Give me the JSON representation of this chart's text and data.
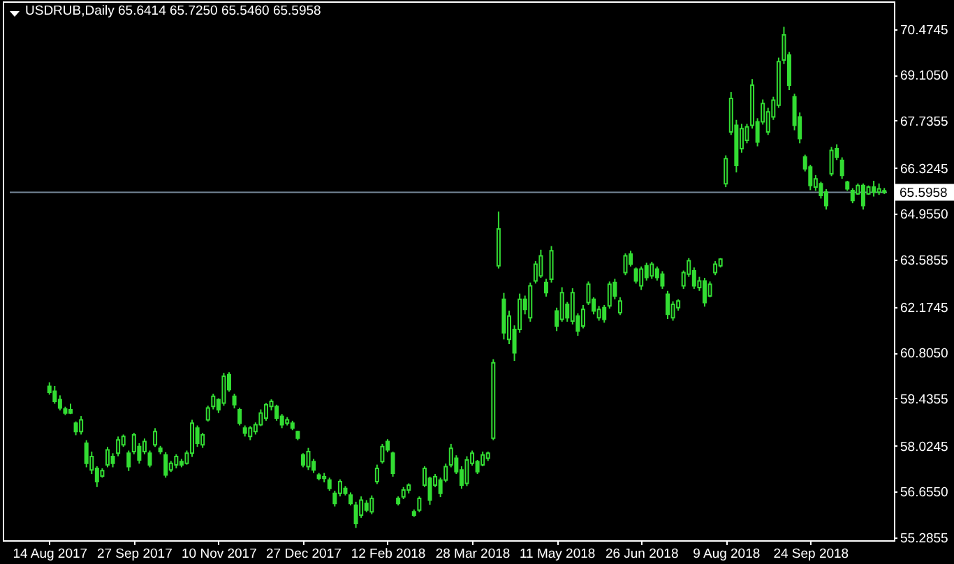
{
  "chart_data": {
    "type": "candlestick",
    "title": "USDRUB,Daily 65.6414 65.7250 65.5460 65.5958",
    "color": "#33dd33",
    "categories": [
      "14 Aug 2017",
      null,
      null,
      null,
      null,
      null,
      null,
      null,
      null,
      null,
      null,
      null,
      null,
      null,
      null,
      null,
      "27 Sep 2017",
      null,
      null,
      null,
      null,
      null,
      null,
      null,
      null,
      null,
      null,
      null,
      null,
      null,
      null,
      null,
      "10 Nov 2017",
      null,
      null,
      null,
      null,
      null,
      null,
      null,
      null,
      null,
      null,
      null,
      null,
      null,
      null,
      null,
      "27 Dec 2017",
      null,
      null,
      null,
      null,
      null,
      null,
      null,
      null,
      null,
      null,
      null,
      null,
      null,
      null,
      null,
      "12 Feb 2018",
      null,
      null,
      null,
      null,
      null,
      null,
      null,
      null,
      null,
      null,
      null,
      null,
      null,
      null,
      null,
      "28 Mar 2018",
      null,
      null,
      null,
      null,
      null,
      null,
      null,
      null,
      null,
      null,
      null,
      null,
      null,
      null,
      null,
      "11 May 2018",
      null,
      null,
      null,
      null,
      null,
      null,
      null,
      null,
      null,
      null,
      null,
      null,
      null,
      null,
      null,
      "26 Jun 2018",
      null,
      null,
      null,
      null,
      null,
      null,
      null,
      null,
      null,
      null,
      null,
      null,
      null,
      null,
      null,
      "9 Aug 2018",
      null,
      null,
      null,
      null,
      null,
      null,
      null,
      null,
      null,
      null,
      null,
      null,
      null,
      null,
      null,
      "24 Sep 2018",
      null,
      null,
      null,
      null,
      null,
      null,
      null,
      null,
      null,
      null,
      null,
      null,
      null,
      null
    ],
    "ohlc": [
      [
        59.8,
        59.92,
        59.55,
        59.62
      ],
      [
        59.65,
        59.81,
        59.28,
        59.35
      ],
      [
        59.4,
        59.53,
        59.08,
        59.15
      ],
      [
        59.12,
        59.19,
        58.94,
        59.0
      ],
      [
        59.1,
        59.28,
        58.97,
        59.0
      ],
      [
        58.7,
        58.75,
        58.34,
        58.45
      ],
      [
        58.45,
        58.91,
        58.36,
        58.8
      ],
      [
        58.1,
        58.19,
        57.38,
        57.5
      ],
      [
        57.3,
        57.85,
        57.18,
        57.7
      ],
      [
        57.35,
        57.41,
        56.79,
        56.95
      ],
      [
        57.12,
        57.35,
        57.07,
        57.28
      ],
      [
        57.45,
        57.99,
        57.38,
        57.9
      ],
      [
        57.7,
        57.8,
        57.38,
        57.5
      ],
      [
        57.8,
        58.3,
        57.71,
        58.2
      ],
      [
        58.05,
        58.36,
        57.99,
        58.3
      ],
      [
        57.8,
        57.88,
        57.27,
        57.4
      ],
      [
        57.85,
        58.41,
        57.77,
        58.35
      ],
      [
        58.0,
        58.1,
        57.49,
        57.6
      ],
      [
        57.85,
        58.24,
        57.77,
        58.15
      ],
      [
        57.8,
        57.88,
        57.38,
        57.45
      ],
      [
        58.05,
        58.55,
        57.99,
        58.45
      ],
      [
        57.95,
        58.02,
        57.77,
        57.85
      ],
      [
        57.75,
        57.83,
        57.07,
        57.15
      ],
      [
        57.3,
        57.57,
        57.24,
        57.5
      ],
      [
        57.45,
        57.77,
        57.35,
        57.7
      ],
      [
        57.55,
        57.63,
        57.38,
        57.45
      ],
      [
        57.5,
        57.88,
        57.46,
        57.8
      ],
      [
        57.8,
        58.8,
        57.69,
        58.7
      ],
      [
        58.55,
        58.63,
        57.99,
        58.1
      ],
      [
        58.05,
        58.41,
        57.96,
        58.35
      ],
      [
        58.8,
        59.22,
        58.75,
        59.15
      ],
      [
        59.2,
        59.58,
        59.11,
        59.5
      ],
      [
        59.4,
        59.44,
        59.0,
        59.1
      ],
      [
        59.3,
        60.2,
        59.22,
        60.1
      ],
      [
        60.15,
        60.22,
        59.64,
        59.7
      ],
      [
        59.5,
        59.58,
        59.14,
        59.25
      ],
      [
        59.1,
        59.16,
        58.63,
        58.7
      ],
      [
        58.55,
        58.63,
        58.3,
        58.4
      ],
      [
        58.3,
        58.61,
        58.19,
        58.55
      ],
      [
        58.45,
        58.72,
        58.36,
        58.65
      ],
      [
        58.65,
        59.11,
        58.61,
        59.0
      ],
      [
        58.85,
        59.3,
        58.77,
        59.25
      ],
      [
        59.2,
        59.41,
        59.08,
        59.35
      ],
      [
        59.2,
        59.25,
        58.77,
        58.85
      ],
      [
        58.9,
        58.97,
        58.55,
        58.65
      ],
      [
        58.7,
        58.88,
        58.63,
        58.8
      ],
      [
        58.7,
        58.77,
        58.49,
        58.55
      ],
      [
        58.45,
        58.47,
        58.19,
        58.25
      ],
      [
        57.75,
        57.8,
        57.38,
        57.45
      ],
      [
        57.4,
        57.96,
        57.3,
        57.85
      ],
      [
        57.55,
        57.63,
        57.21,
        57.3
      ],
      [
        57.15,
        57.21,
        56.99,
        57.05
      ],
      [
        57.05,
        57.21,
        56.93,
        57.1
      ],
      [
        57.0,
        57.07,
        56.68,
        56.75
      ],
      [
        56.6,
        56.68,
        56.21,
        56.3
      ],
      [
        56.6,
        57.02,
        56.51,
        56.95
      ],
      [
        56.75,
        56.82,
        56.54,
        56.6
      ],
      [
        56.55,
        56.63,
        56.24,
        56.3
      ],
      [
        56.25,
        56.35,
        55.57,
        55.7
      ],
      [
        55.95,
        56.51,
        55.87,
        56.4
      ],
      [
        56.3,
        56.4,
        56.04,
        56.1
      ],
      [
        56.05,
        56.54,
        55.98,
        56.45
      ],
      [
        56.95,
        57.46,
        56.88,
        57.35
      ],
      [
        57.55,
        58.08,
        57.49,
        58.0
      ],
      [
        58.15,
        58.22,
        57.83,
        57.9
      ],
      [
        57.8,
        57.85,
        57.1,
        57.2
      ],
      [
        56.45,
        56.51,
        56.24,
        56.3
      ],
      [
        56.5,
        56.79,
        56.43,
        56.7
      ],
      [
        56.7,
        56.9,
        56.6,
        56.85
      ],
      [
        56.05,
        56.12,
        55.9,
        55.95
      ],
      [
        56.1,
        56.51,
        56.04,
        56.45
      ],
      [
        56.85,
        57.41,
        56.79,
        57.35
      ],
      [
        57.05,
        57.1,
        56.26,
        56.4
      ],
      [
        56.85,
        57.18,
        56.79,
        57.1
      ],
      [
        57.0,
        57.07,
        56.49,
        56.6
      ],
      [
        57.0,
        57.49,
        56.93,
        57.4
      ],
      [
        57.45,
        58.08,
        57.38,
        57.95
      ],
      [
        57.65,
        57.74,
        57.18,
        57.25
      ],
      [
        57.3,
        57.41,
        56.74,
        56.85
      ],
      [
        56.9,
        57.71,
        56.82,
        57.6
      ],
      [
        57.5,
        57.88,
        57.43,
        57.8
      ],
      [
        57.55,
        57.6,
        57.18,
        57.25
      ],
      [
        57.45,
        57.85,
        57.41,
        57.75
      ],
      [
        57.65,
        57.85,
        57.57,
        57.8
      ],
      [
        58.25,
        60.61,
        58.19,
        60.5
      ],
      [
        63.4,
        65.02,
        63.32,
        64.5
      ],
      [
        62.4,
        62.59,
        61.2,
        61.4
      ],
      [
        61.2,
        62.06,
        61.06,
        61.9
      ],
      [
        61.5,
        61.62,
        60.56,
        60.8
      ],
      [
        61.5,
        62.57,
        61.4,
        62.4
      ],
      [
        62.4,
        62.51,
        61.95,
        62.1
      ],
      [
        61.85,
        62.9,
        61.73,
        62.8
      ],
      [
        62.95,
        63.54,
        62.87,
        63.45
      ],
      [
        63.1,
        63.88,
        63.04,
        63.7
      ],
      [
        62.9,
        63.01,
        62.48,
        62.6
      ],
      [
        63.0,
        63.99,
        62.9,
        63.85
      ],
      [
        62.05,
        62.15,
        61.45,
        61.6
      ],
      [
        61.8,
        62.76,
        61.73,
        62.6
      ],
      [
        62.25,
        62.32,
        61.73,
        61.85
      ],
      [
        61.75,
        62.73,
        61.65,
        62.6
      ],
      [
        61.9,
        61.98,
        61.31,
        61.45
      ],
      [
        61.6,
        62.23,
        61.53,
        62.1
      ],
      [
        62.3,
        62.93,
        62.23,
        62.85
      ],
      [
        62.4,
        62.46,
        61.95,
        62.05
      ],
      [
        61.85,
        62.2,
        61.76,
        62.1
      ],
      [
        62.15,
        62.23,
        61.7,
        61.8
      ],
      [
        62.2,
        62.93,
        62.12,
        62.85
      ],
      [
        62.9,
        63.01,
        62.4,
        62.5
      ],
      [
        62.0,
        62.46,
        61.93,
        62.35
      ],
      [
        63.2,
        63.77,
        63.12,
        63.7
      ],
      [
        63.75,
        63.85,
        63.38,
        63.45
      ],
      [
        63.3,
        63.35,
        62.87,
        62.95
      ],
      [
        62.8,
        63.38,
        62.68,
        63.3
      ],
      [
        63.4,
        63.49,
        62.96,
        63.05
      ],
      [
        63.1,
        63.52,
        63.01,
        63.45
      ],
      [
        63.3,
        63.38,
        62.96,
        63.05
      ],
      [
        63.15,
        63.24,
        62.71,
        62.8
      ],
      [
        62.55,
        62.65,
        61.81,
        61.95
      ],
      [
        61.85,
        62.34,
        61.76,
        62.25
      ],
      [
        62.15,
        62.4,
        62.06,
        62.35
      ],
      [
        62.8,
        63.26,
        62.71,
        63.2
      ],
      [
        63.15,
        63.63,
        63.07,
        63.55
      ],
      [
        63.25,
        63.35,
        62.71,
        62.8
      ],
      [
        62.75,
        63.07,
        62.65,
        62.95
      ],
      [
        62.95,
        63.04,
        62.18,
        62.3
      ],
      [
        62.5,
        62.93,
        62.46,
        62.85
      ],
      [
        63.2,
        63.54,
        63.12,
        63.45
      ],
      [
        63.4,
        63.63,
        63.35,
        63.6
      ],
      [
        65.85,
        66.7,
        65.75,
        66.6
      ],
      [
        67.4,
        68.59,
        67.31,
        68.4
      ],
      [
        67.6,
        67.76,
        66.19,
        66.4
      ],
      [
        66.9,
        67.64,
        66.78,
        67.5
      ],
      [
        67.15,
        67.64,
        67.06,
        67.55
      ],
      [
        67.6,
        68.98,
        67.5,
        68.8
      ],
      [
        67.7,
        67.81,
        66.97,
        67.1
      ],
      [
        67.7,
        68.37,
        67.62,
        68.25
      ],
      [
        67.4,
        68.12,
        67.31,
        68.0
      ],
      [
        67.85,
        68.45,
        67.76,
        68.35
      ],
      [
        68.2,
        69.62,
        68.12,
        69.5
      ],
      [
        69.55,
        70.54,
        69.43,
        70.3
      ],
      [
        69.7,
        69.79,
        68.65,
        68.8
      ],
      [
        68.45,
        68.54,
        67.45,
        67.6
      ],
      [
        67.85,
        67.98,
        67.06,
        67.2
      ],
      [
        66.65,
        66.72,
        66.22,
        66.3
      ],
      [
        66.35,
        66.42,
        65.66,
        65.8
      ],
      [
        65.75,
        66.11,
        65.64,
        66.0
      ],
      [
        65.85,
        65.91,
        65.41,
        65.5
      ],
      [
        65.6,
        65.69,
        65.08,
        65.2
      ],
      [
        66.15,
        66.95,
        66.08,
        66.85
      ],
      [
        66.9,
        67.03,
        66.56,
        66.65
      ],
      [
        66.55,
        66.64,
        66.0,
        66.1
      ],
      [
        65.9,
        65.94,
        65.64,
        65.7
      ],
      [
        65.65,
        65.72,
        65.27,
        65.35
      ],
      [
        65.55,
        65.86,
        65.52,
        65.8
      ],
      [
        65.8,
        65.86,
        65.08,
        65.2
      ],
      [
        65.55,
        65.8,
        65.52,
        65.75
      ],
      [
        65.75,
        65.94,
        65.47,
        65.6
      ],
      [
        65.6,
        65.86,
        65.52,
        65.7
      ],
      [
        65.6414,
        65.725,
        65.546,
        65.5958
      ]
    ],
    "ylim": [
      55.2,
      71.3
    ],
    "yticks": [
      55.2855,
      {
        "value": 56.655,
        "label": "56.6550"
      },
      58.0245,
      59.4355,
      {
        "value": 60.805,
        "label": "60.8050"
      },
      62.1745,
      63.5855,
      {
        "value": 64.955,
        "label": "64.9550"
      },
      66.3245,
      67.7355,
      {
        "value": 69.105,
        "label": "69.1050"
      },
      70.4745
    ],
    "ref_lines": [
      {
        "axis": "y",
        "value": 65.5958,
        "label": "65.5958",
        "color": "#778899"
      }
    ]
  }
}
